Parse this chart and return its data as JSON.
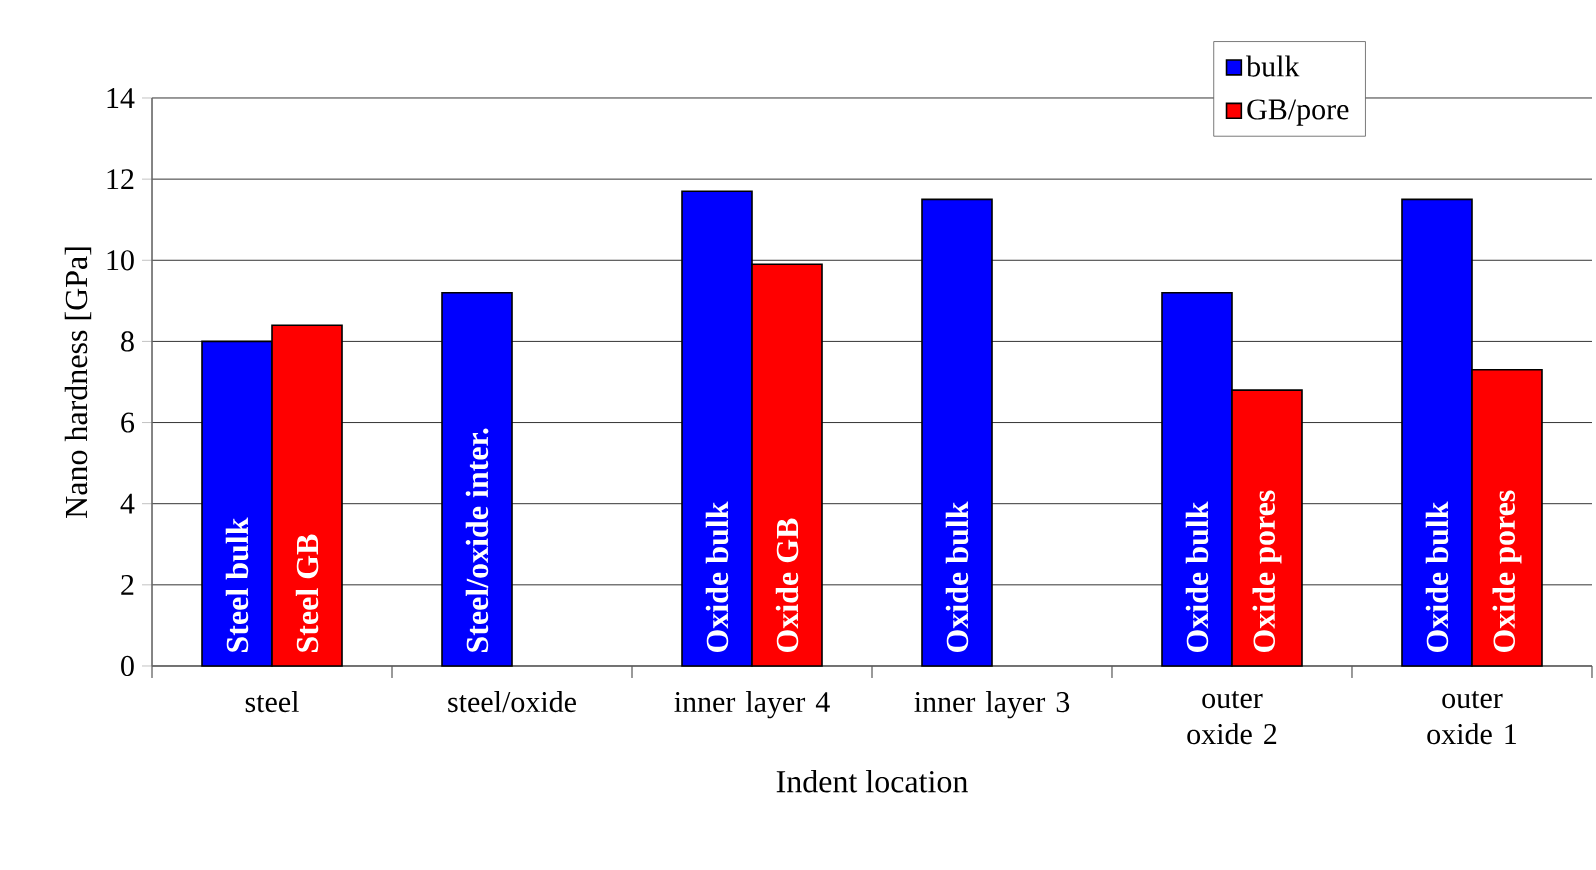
{
  "chart_data": {
    "type": "bar",
    "xlabel": "Indent location",
    "ylabel": "Nano hardness [GPa]",
    "categories": [
      "steel",
      "steel/oxide",
      "inner layer 4",
      "inner layer 3",
      "outer oxide 2",
      "outer oxide 1"
    ],
    "series": [
      {
        "name": "bulk",
        "color": "#0000ff",
        "values": [
          8.0,
          9.2,
          11.7,
          11.5,
          9.2,
          11.5
        ],
        "value_labels": [
          "Steel bulk",
          "Steel/oxide inter.",
          "Oxide bulk",
          "Oxide bulk",
          "Oxide bulk",
          "Oxide bulk"
        ]
      },
      {
        "name": "GB/pore",
        "color": "#ff0000",
        "values": [
          8.4,
          null,
          9.9,
          null,
          6.8,
          7.3
        ],
        "value_labels": [
          "Steel GB",
          null,
          "Oxide GB",
          null,
          "Oxide pores",
          "Oxide pores"
        ]
      }
    ],
    "ylim": [
      0,
      14
    ],
    "yticks": [
      0,
      2,
      4,
      6,
      8,
      10,
      12,
      14
    ],
    "grid": "y",
    "legend": "top right"
  }
}
